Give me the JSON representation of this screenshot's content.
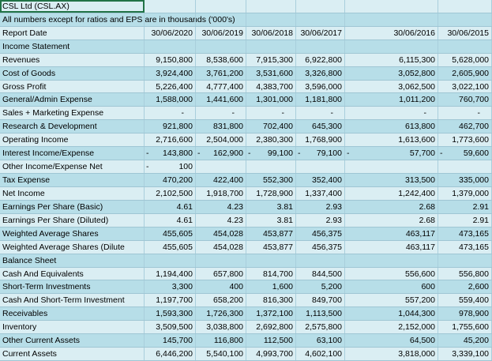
{
  "title": "CSL Ltd (CSL.AX)",
  "note": "All numbers except for ratios and EPS are in thousands ('000's)",
  "header": {
    "label": "Report Date",
    "dates": [
      "30/06/2020",
      "30/06/2019",
      "30/06/2018",
      "30/06/2017",
      "30/06/2016",
      "30/06/2015"
    ]
  },
  "rows": [
    {
      "label": "Income Statement",
      "cells": []
    },
    {
      "label": "Revenues",
      "cells": [
        "9,150,800",
        "8,538,600",
        "7,915,300",
        "6,922,800",
        "6,115,300",
        "5,628,000"
      ]
    },
    {
      "label": "Cost of Goods",
      "cells": [
        "3,924,400",
        "3,761,200",
        "3,531,600",
        "3,326,800",
        "3,052,800",
        "2,605,900"
      ]
    },
    {
      "label": "Gross Profit",
      "cells": [
        "5,226,400",
        "4,777,400",
        "4,383,700",
        "3,596,000",
        "3,062,500",
        "3,022,100"
      ]
    },
    {
      "label": "General/Admin Expense",
      "cells": [
        "1,588,000",
        "1,441,600",
        "1,301,000",
        "1,181,800",
        "1,011,200",
        "760,700"
      ]
    },
    {
      "label": "Sales + Marketing Expense",
      "cells": [
        "-",
        "-",
        "-",
        "-",
        "-",
        "-"
      ]
    },
    {
      "label": "Research & Development",
      "cells": [
        "921,800",
        "831,800",
        "702,400",
        "645,300",
        "613,800",
        "462,700"
      ]
    },
    {
      "label": "Operating Income",
      "cells": [
        "2,716,600",
        "2,504,000",
        "2,380,300",
        "1,768,900",
        "1,613,600",
        "1,773,600"
      ]
    },
    {
      "label": "Interest Income/Expense",
      "cells": [
        {
          "sign": "-",
          "text": "143,800"
        },
        {
          "sign": "-",
          "text": "162,900"
        },
        {
          "sign": "-",
          "text": "99,100"
        },
        {
          "sign": "-",
          "text": "79,100"
        },
        {
          "sign": "-",
          "text": "57,700"
        },
        {
          "sign": "-",
          "text": "59,600"
        }
      ]
    },
    {
      "label": "Other Income/Expense Net",
      "cells": [
        {
          "sign": "-",
          "text": "100"
        }
      ]
    },
    {
      "label": "Tax Expense",
      "cells": [
        "470,200",
        "422,400",
        "552,300",
        "352,400",
        "313,500",
        "335,000"
      ]
    },
    {
      "label": "Net Income",
      "cells": [
        "2,102,500",
        "1,918,700",
        "1,728,900",
        "1,337,400",
        "1,242,400",
        "1,379,000"
      ]
    },
    {
      "label": "Earnings Per Share (Basic)",
      "cells": [
        "4.61",
        "4.23",
        "3.81",
        "2.93",
        "2.68",
        "2.91"
      ]
    },
    {
      "label": "Earnings Per Share (Diluted)",
      "cells": [
        "4.61",
        "4.23",
        "3.81",
        "2.93",
        "2.68",
        "2.91"
      ]
    },
    {
      "label": "Weighted Average Shares",
      "cells": [
        "455,605",
        "454,028",
        "453,877",
        "456,375",
        "463,117",
        "473,165"
      ]
    },
    {
      "label": "Weighted Average Shares (Dilute",
      "cells": [
        "455,605",
        "454,028",
        "453,877",
        "456,375",
        "463,117",
        "473,165"
      ]
    },
    {
      "label": "Balance Sheet",
      "cells": []
    },
    {
      "label": "Cash And Equivalents",
      "cells": [
        "1,194,400",
        "657,800",
        "814,700",
        "844,500",
        "556,600",
        "556,800"
      ]
    },
    {
      "label": "Short-Term Investments",
      "cells": [
        "3,300",
        "400",
        "1,600",
        "5,200",
        "600",
        "2,600"
      ]
    },
    {
      "label": "Cash And Short-Term Investment",
      "cells": [
        "1,197,700",
        "658,200",
        "816,300",
        "849,700",
        "557,200",
        "559,400"
      ]
    },
    {
      "label": "Receivables",
      "cells": [
        "1,593,300",
        "1,726,300",
        "1,372,100",
        "1,113,500",
        "1,044,300",
        "978,900"
      ]
    },
    {
      "label": "Inventory",
      "cells": [
        "3,509,500",
        "3,038,800",
        "2,692,800",
        "2,575,800",
        "2,152,000",
        "1,755,600"
      ]
    },
    {
      "label": "Other Current Assets",
      "cells": [
        "145,700",
        "116,800",
        "112,500",
        "63,100",
        "64,500",
        "45,200"
      ]
    },
    {
      "label": "Current Assets",
      "cells": [
        "6,446,200",
        "5,540,100",
        "4,993,700",
        "4,602,100",
        "3,818,000",
        "3,339,100"
      ]
    }
  ]
}
